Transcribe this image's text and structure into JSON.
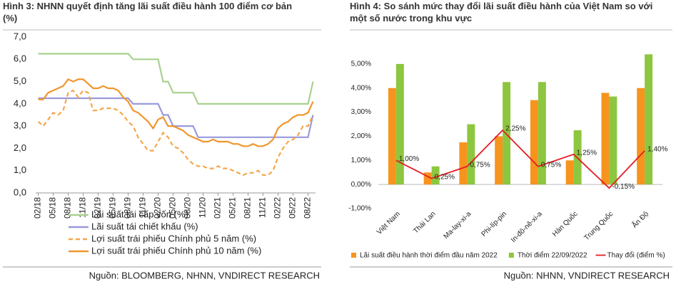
{
  "chart_data": [
    {
      "type": "line",
      "title": "Hình 3: NHNN quyết định tăng lãi suất điều hành 100 điểm cơ bản (%)",
      "source": "Nguồn: BLOOMBERG, NHNN, VNDIRECT RESEARCH",
      "categories": [
        "02/18",
        null,
        null,
        "05/18",
        null,
        null,
        "08/18",
        null,
        null,
        "11/18",
        null,
        null,
        "02/19",
        null,
        null,
        "05/19",
        null,
        null,
        "08/19",
        null,
        null,
        "11/19",
        null,
        null,
        "02/20",
        null,
        null,
        "05/20",
        null,
        null,
        "08/20",
        null,
        null,
        "11/20",
        null,
        null,
        "02/21",
        null,
        null,
        "05/21",
        null,
        null,
        "08/21",
        null,
        null,
        "11/21",
        null,
        null,
        "02/22",
        null,
        null,
        "05/22",
        null,
        null,
        "08/22",
        null
      ],
      "ylim": [
        0,
        7
      ],
      "yticks": [
        {
          "value": 0,
          "label": "0,0"
        },
        {
          "value": 1,
          "label": "1,0"
        },
        {
          "value": 2,
          "label": "2,0"
        },
        {
          "value": 3,
          "label": "3,0"
        },
        {
          "value": 4,
          "label": "4,0"
        },
        {
          "value": 5,
          "label": "5,0"
        },
        {
          "value": 6,
          "label": "6,0"
        },
        {
          "value": 7,
          "label": "7,0"
        }
      ],
      "series": [
        {
          "name": "Lãi suất tái cấp vốn (%)",
          "color": "#a9d18e",
          "style": "solid",
          "values": [
            6.25,
            6.25,
            6.25,
            6.25,
            6.25,
            6.25,
            6.25,
            6.25,
            6.25,
            6.25,
            6.25,
            6.25,
            6.25,
            6.25,
            6.25,
            6.25,
            6.25,
            6.25,
            6.25,
            6,
            6,
            6,
            6,
            6,
            6,
            5,
            5,
            4.5,
            4.5,
            4.5,
            4.5,
            4.5,
            4,
            4,
            4,
            4,
            4,
            4,
            4,
            4,
            4,
            4,
            4,
            4,
            4,
            4,
            4,
            4,
            4,
            4,
            4,
            4,
            4,
            4,
            4,
            5
          ]
        },
        {
          "name": "Lãi suất tái chiết khấu (%)",
          "color": "#9999dd",
          "style": "solid",
          "values": [
            4.25,
            4.25,
            4.25,
            4.25,
            4.25,
            4.25,
            4.25,
            4.25,
            4.25,
            4.25,
            4.25,
            4.25,
            4.25,
            4.25,
            4.25,
            4.25,
            4.25,
            4.25,
            4.25,
            4,
            4,
            4,
            4,
            4,
            4,
            3.5,
            3.5,
            3,
            3,
            3,
            3,
            3,
            2.5,
            2.5,
            2.5,
            2.5,
            2.5,
            2.5,
            2.5,
            2.5,
            2.5,
            2.5,
            2.5,
            2.5,
            2.5,
            2.5,
            2.5,
            2.5,
            2.5,
            2.5,
            2.5,
            2.5,
            2.5,
            2.5,
            2.5,
            3.5
          ]
        },
        {
          "name": "Lợi suất trái phiếu Chính phủ 5 năm (%)",
          "color": "#f4a74a",
          "style": "dashed",
          "values": [
            3.2,
            3.0,
            3.3,
            3.6,
            3.5,
            3.7,
            4.5,
            4.6,
            4.3,
            4.6,
            4.5,
            3.7,
            3.7,
            3.8,
            3.8,
            3.8,
            3.7,
            3.5,
            3.2,
            3.0,
            2.5,
            2.2,
            1.9,
            1.9,
            2.3,
            2.7,
            2.5,
            2.1,
            2.0,
            1.8,
            1.5,
            1.3,
            1.2,
            1.2,
            1.1,
            1.1,
            1.2,
            1.1,
            1.1,
            1.0,
            0.9,
            0.8,
            0.9,
            0.9,
            1.0,
            0.8,
            0.8,
            1.0,
            1.6,
            2.0,
            2.3,
            2.4,
            2.6,
            3.0,
            3.0,
            3.5
          ]
        },
        {
          "name": "Lợi suất trái phiếu Chính phủ 10 năm (%)",
          "color": "#f0962e",
          "style": "solid",
          "values": [
            4.2,
            4.2,
            4.5,
            4.6,
            4.7,
            4.8,
            5.1,
            5.0,
            5.1,
            5.1,
            4.9,
            4.7,
            4.7,
            4.8,
            4.7,
            4.7,
            4.6,
            4.3,
            4.1,
            3.7,
            3.6,
            3.4,
            3.2,
            2.9,
            3.3,
            3.4,
            3.0,
            3.0,
            2.9,
            2.8,
            2.6,
            2.5,
            2.4,
            2.3,
            2.3,
            2.4,
            2.3,
            2.3,
            2.3,
            2.2,
            2.2,
            2.1,
            2.1,
            2.2,
            2.1,
            2.1,
            2.2,
            2.4,
            2.9,
            3.1,
            3.2,
            3.4,
            3.5,
            3.5,
            3.6,
            4.1
          ]
        }
      ]
    },
    {
      "type": "combo",
      "title": "Hình 4: So sánh mức thay đổi lãi suất điều hành của Việt Nam so với một số nước trong khu vực",
      "source": "Nguồn: NHNN, VNDIRECT RESEARCH",
      "categories": [
        "Việt Nam",
        "Thái Lan",
        "Ma-lay-xi-a",
        "Phi-líp-pin",
        "In-đô-nê-xi-a",
        "Hàn Quốc",
        "Trung Quốc",
        "Ấn Độ"
      ],
      "ylim": [
        -1,
        6
      ],
      "yticks": [
        {
          "value": -1,
          "label": "-1,00%"
        },
        {
          "value": 0,
          "label": "0,00%"
        },
        {
          "value": 1,
          "label": "1,00%"
        },
        {
          "value": 2,
          "label": "2,00%"
        },
        {
          "value": 3,
          "label": "3,00%"
        },
        {
          "value": 4,
          "label": "4,00%"
        },
        {
          "value": 5,
          "label": "5,00%"
        },
        {
          "value": 6,
          "label": "6,00%"
        }
      ],
      "series": [
        {
          "name": "Lãi suất điều hành thời điểm đầu năm 2022",
          "type": "bar",
          "color": "#f7941d",
          "values": [
            4.0,
            0.5,
            1.75,
            2.0,
            3.5,
            1.0,
            3.8,
            4.0
          ]
        },
        {
          "name": "Thời điểm 22/09/2022",
          "type": "bar",
          "color": "#8dc63f",
          "values": [
            5.0,
            0.75,
            2.5,
            4.25,
            4.25,
            2.25,
            3.65,
            5.4
          ]
        },
        {
          "name": "Thay đổi (điểm %)",
          "type": "line",
          "color": "#e31e24",
          "values": [
            1.0,
            0.25,
            0.75,
            2.25,
            0.75,
            1.25,
            -0.15,
            1.4
          ],
          "value_labels": [
            "1,00%",
            "0,25%",
            "0,75%",
            "2,25%",
            "0,75%",
            "1,25%",
            "-0,15%",
            "1,40%"
          ]
        }
      ]
    }
  ]
}
